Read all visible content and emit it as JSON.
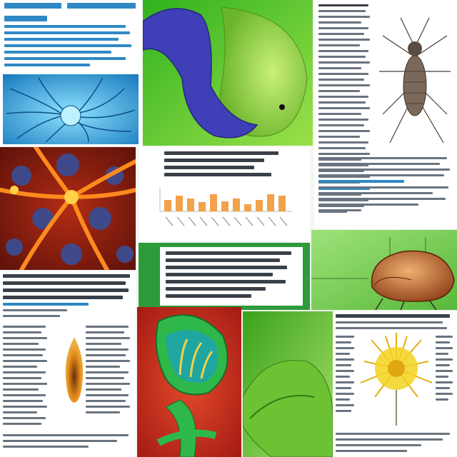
{
  "collage": {
    "description_visible_text": "",
    "tiles": [
      {
        "id": "cell-network-poster",
        "colors": {
          "bg": "#3aa6d8",
          "accent": "#1d85c8"
        }
      },
      {
        "id": "green-blue-organism",
        "colors": {
          "bg": "#58c51e",
          "shape": "#3f3fb8"
        }
      },
      {
        "id": "insect-text-page",
        "colors": {
          "bg": "#ffffff",
          "insect": "#6b5a4e"
        }
      },
      {
        "id": "orange-neuron",
        "colors": {
          "bg": "#7a1a10",
          "glow": "#ff8a1e",
          "cell": "#3a4a8a"
        }
      },
      {
        "id": "bar-chart-card",
        "colors": {
          "bar": "#f2a24a",
          "bg": "#ffffff"
        }
      },
      {
        "id": "text-block-left",
        "colors": {
          "bg": "#ffffff"
        }
      },
      {
        "id": "green-text-card",
        "colors": {
          "bg": "#ffffff",
          "border": "#2e9a3a"
        }
      },
      {
        "id": "beetle-diagram",
        "colors": {
          "bg": "#7bd35a",
          "body": "#c06a2a"
        }
      },
      {
        "id": "red-green-structure",
        "colors": {
          "bg": "#d0301c",
          "green": "#2fb84a",
          "teal": "#1fa6a0"
        }
      },
      {
        "id": "green-organism",
        "colors": {
          "bg": "#5fbf2a"
        }
      },
      {
        "id": "yellow-flower-page",
        "colors": {
          "bg": "#ffffff",
          "flower": "#f3d21e"
        }
      },
      {
        "id": "orange-cell-page",
        "colors": {
          "bg": "#ffffff",
          "cell": "#e08a1a"
        }
      }
    ]
  }
}
